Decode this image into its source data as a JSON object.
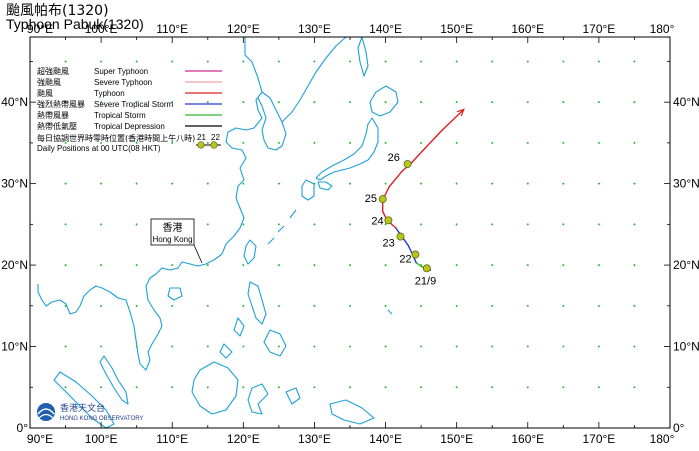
{
  "title": {
    "zh": "颱風帕布(1320)",
    "en": "Typhoon Pabuk(1320)"
  },
  "axes": {
    "lon_labels": [
      "90°E",
      "100°E",
      "110°E",
      "120°E",
      "130°E",
      "140°E",
      "150°E",
      "160°E",
      "170°E",
      "180°"
    ],
    "lat_labels": [
      "0°",
      "10°N",
      "20°N",
      "30°N",
      "40°N"
    ],
    "lon_range": [
      90,
      180
    ],
    "lat_range": [
      0,
      48
    ]
  },
  "legend": {
    "entries": [
      {
        "zh": "超強颱風",
        "en": "Super Typhoon",
        "color": "#d02a8c"
      },
      {
        "zh": "強颱風",
        "en": "Severe Typhoon",
        "color": "#f5a0a0"
      },
      {
        "zh": "颱風",
        "en": "Typhoon",
        "color": "#e02020"
      },
      {
        "zh": "強烈熱帶風暴",
        "en": "Severe Tropical Storm",
        "color": "#1f3fd0"
      },
      {
        "zh": "熱帶風暴",
        "en": "Tropical Storm",
        "color": "#2cb82c"
      },
      {
        "zh": "熱帶低氣壓",
        "en": "Tropical Depression",
        "color": "#000000"
      }
    ],
    "note_zh": "每日協調世界時零時位置(香港時間上午八時)",
    "note_en": "Daily Positions at 00 UTC(08 HKT)",
    "sample_days": [
      "21",
      "22"
    ]
  },
  "hong_kong_label": {
    "zh": "香港",
    "en": "Hong Kong"
  },
  "logo": {
    "zh": "香港天文台",
    "en": "HONG KONG OBSERVATORY"
  },
  "track": {
    "points": [
      {
        "lon": 146.3,
        "lat": 19.4,
        "cat": "TD"
      },
      {
        "lon": 145.8,
        "lat": 19.6,
        "cat": "TD"
      },
      {
        "lon": 145.1,
        "lat": 19.8,
        "cat": "TS"
      },
      {
        "lon": 144.3,
        "lat": 20.3,
        "cat": "TS"
      },
      {
        "lon": 143.8,
        "lat": 21.3,
        "cat": "STS"
      },
      {
        "lon": 143.2,
        "lat": 22.4,
        "cat": "STS"
      },
      {
        "lon": 142.3,
        "lat": 23.5,
        "cat": "STS"
      },
      {
        "lon": 141.4,
        "lat": 24.6,
        "cat": "STS"
      },
      {
        "lon": 140.2,
        "lat": 25.5,
        "cat": "T"
      },
      {
        "lon": 139.6,
        "lat": 26.6,
        "cat": "T"
      },
      {
        "lon": 139.6,
        "lat": 28.0,
        "cat": "T"
      },
      {
        "lon": 140.5,
        "lat": 29.6,
        "cat": "T"
      },
      {
        "lon": 142.3,
        "lat": 31.5,
        "cat": "T"
      },
      {
        "lon": 143.6,
        "lat": 32.5,
        "cat": "T"
      },
      {
        "lon": 145.5,
        "lat": 34.3,
        "cat": "T"
      },
      {
        "lon": 148.0,
        "lat": 36.6,
        "cat": "T"
      },
      {
        "lon": 151.0,
        "lat": 39.1,
        "cat": "T"
      }
    ],
    "daily_positions": [
      {
        "label": "21/9",
        "lon": 145.8,
        "lat": 19.6
      },
      {
        "label": "22",
        "lon": 144.2,
        "lat": 21.3
      },
      {
        "label": "23",
        "lon": 142.1,
        "lat": 23.5
      },
      {
        "label": "24",
        "lon": 140.4,
        "lat": 25.5
      },
      {
        "label": "25",
        "lon": 139.6,
        "lat": 28.1
      },
      {
        "label": "26",
        "lon": 143.1,
        "lat": 32.4
      }
    ]
  },
  "colors": {
    "coast": "#1ea0d8",
    "grid_dot": "#2cb82c",
    "frame": "#000000",
    "marker_fill": "#b8c61c"
  }
}
